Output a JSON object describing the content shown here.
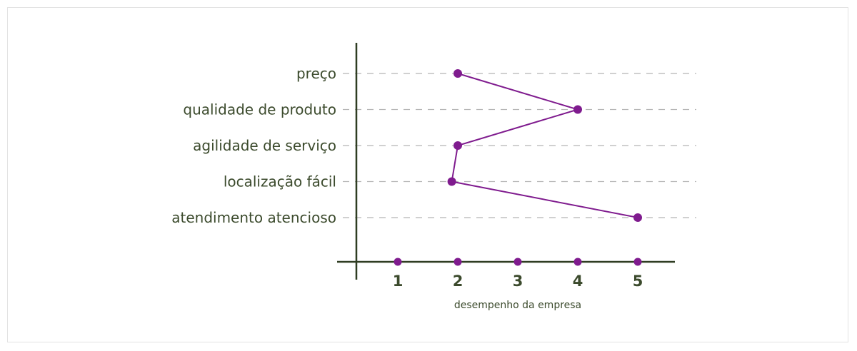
{
  "chart_data": {
    "type": "line",
    "orientation": "horizontal",
    "categories": [
      "preço",
      "qualidade de produto",
      "agilidade de serviço",
      "localização fácil",
      "atendimento atencioso"
    ],
    "x_ticks": [
      "1",
      "2",
      "3",
      "4",
      "5"
    ],
    "values": [
      2,
      4,
      2,
      1.9,
      5
    ],
    "xlabel": "desempenho da empresa",
    "grid": "dashed horizontal guides",
    "colors": {
      "series": "#7f1b8e",
      "axis": "#2f3d22",
      "text": "#3b4a2c",
      "grid": "#b5b5b5"
    }
  }
}
